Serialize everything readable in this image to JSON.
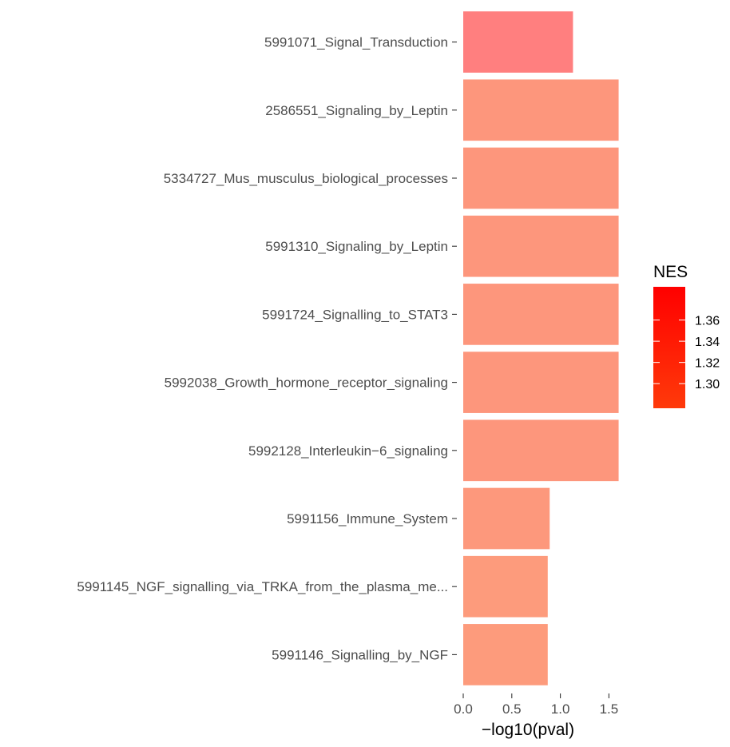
{
  "chart_data": {
    "type": "bar",
    "orientation": "horizontal",
    "categories": [
      "5991071_Signal_Transduction",
      "2586551_Signaling_by_Leptin",
      "5334727_Mus_musculus_biological_processes",
      "5991310_Signaling_by_Leptin",
      "5991724_Signalling_to_STAT3",
      "5992038_Growth_hormone_receptor_signaling",
      "5992128_Interleukin−6_signaling",
      "5991156_Immune_System",
      "5991145_NGF_signalling_via_TRKA_from_the_plasma_me...",
      "5991146_Signalling_by_NGF"
    ],
    "values": [
      1.13,
      1.6,
      1.6,
      1.6,
      1.6,
      1.6,
      1.6,
      0.89,
      0.87,
      0.87
    ],
    "bar_colors": [
      "#ff7f7f",
      "#fd967c",
      "#fd967c",
      "#fd967c",
      "#fd967c",
      "#fd967c",
      "#fd967c",
      "#fd987c",
      "#fd9b7c",
      "#fd9b7c"
    ],
    "xlabel": "−log10(pval)",
    "ylabel": "",
    "xlim": [
      0,
      1.65
    ],
    "x_ticks": [
      0.0,
      0.5,
      1.0,
      1.5
    ],
    "x_tick_labels": [
      "0.0",
      "0.5",
      "1.0",
      "1.5"
    ],
    "grid": false,
    "legend": {
      "title": "NES",
      "placement": "right",
      "type": "colorbar",
      "ticks": [
        1.36,
        1.34,
        1.32,
        1.3
      ],
      "tick_labels": [
        "1.36",
        "1.34",
        "1.32",
        "1.30"
      ],
      "range": [
        1.2768,
        1.3913
      ],
      "color_low": "#ff3a0a",
      "color_high": "#ff0000"
    }
  }
}
